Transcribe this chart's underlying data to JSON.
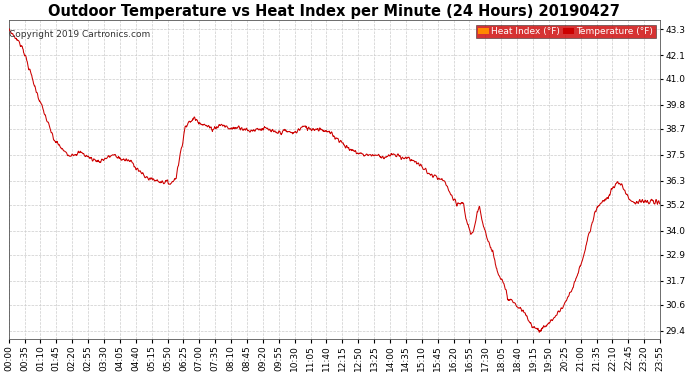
{
  "title": "Outdoor Temperature vs Heat Index per Minute (24 Hours) 20190427",
  "copyright": "Copyright 2019 Cartronics.com",
  "legend_labels": [
    "Heat Index (°F)",
    "Temperature (°F)"
  ],
  "legend_bg_colors": [
    "#ff8800",
    "#cc0000"
  ],
  "line_color": "#cc0000",
  "bg_color": "#ffffff",
  "plot_bg_color": "#ffffff",
  "grid_color": "#cccccc",
  "ylim": [
    29.0,
    43.7
  ],
  "yticks": [
    29.4,
    30.6,
    31.7,
    32.9,
    34.0,
    35.2,
    36.3,
    37.5,
    38.7,
    39.8,
    41.0,
    42.1,
    43.3
  ],
  "title_fontsize": 10.5,
  "copyright_fontsize": 6.5,
  "tick_fontsize": 6.5,
  "x_tick_labels": [
    "00:00",
    "00:35",
    "01:10",
    "01:45",
    "02:20",
    "02:55",
    "03:30",
    "04:05",
    "04:40",
    "05:15",
    "05:50",
    "06:25",
    "07:00",
    "07:35",
    "08:10",
    "08:45",
    "09:20",
    "09:55",
    "10:30",
    "11:05",
    "11:40",
    "12:15",
    "12:50",
    "13:25",
    "14:00",
    "14:35",
    "15:10",
    "15:45",
    "16:20",
    "16:55",
    "17:30",
    "18:05",
    "18:40",
    "19:15",
    "19:50",
    "20:25",
    "21:00",
    "21:35",
    "22:10",
    "22:45",
    "23:20",
    "23:55"
  ],
  "keypoints": [
    [
      0,
      43.3
    ],
    [
      30,
      42.5
    ],
    [
      60,
      40.5
    ],
    [
      100,
      38.2
    ],
    [
      130,
      37.5
    ],
    [
      160,
      37.6
    ],
    [
      185,
      37.3
    ],
    [
      200,
      37.2
    ],
    [
      230,
      37.5
    ],
    [
      250,
      37.3
    ],
    [
      270,
      37.2
    ],
    [
      300,
      36.5
    ],
    [
      330,
      36.3
    ],
    [
      360,
      36.2
    ],
    [
      370,
      36.5
    ],
    [
      390,
      38.8
    ],
    [
      410,
      39.2
    ],
    [
      430,
      38.9
    ],
    [
      450,
      38.7
    ],
    [
      470,
      38.9
    ],
    [
      490,
      38.7
    ],
    [
      510,
      38.8
    ],
    [
      530,
      38.6
    ],
    [
      550,
      38.7
    ],
    [
      570,
      38.7
    ],
    [
      590,
      38.5
    ],
    [
      610,
      38.6
    ],
    [
      630,
      38.5
    ],
    [
      650,
      38.8
    ],
    [
      670,
      38.7
    ],
    [
      690,
      38.7
    ],
    [
      710,
      38.5
    ],
    [
      730,
      38.2
    ],
    [
      750,
      37.8
    ],
    [
      770,
      37.6
    ],
    [
      790,
      37.5
    ],
    [
      810,
      37.5
    ],
    [
      830,
      37.4
    ],
    [
      850,
      37.5
    ],
    [
      870,
      37.4
    ],
    [
      890,
      37.3
    ],
    [
      910,
      37.0
    ],
    [
      930,
      36.6
    ],
    [
      950,
      36.4
    ],
    [
      960,
      36.3
    ],
    [
      970,
      36.0
    ],
    [
      980,
      35.5
    ],
    [
      990,
      35.2
    ],
    [
      1000,
      35.3
    ],
    [
      1005,
      35.2
    ],
    [
      1010,
      34.6
    ],
    [
      1020,
      33.9
    ],
    [
      1025,
      33.9
    ],
    [
      1030,
      34.2
    ],
    [
      1035,
      34.8
    ],
    [
      1040,
      35.2
    ],
    [
      1045,
      34.6
    ],
    [
      1050,
      34.2
    ],
    [
      1055,
      33.8
    ],
    [
      1060,
      33.5
    ],
    [
      1065,
      33.2
    ],
    [
      1070,
      33.0
    ],
    [
      1075,
      32.5
    ],
    [
      1080,
      32.2
    ],
    [
      1085,
      31.9
    ],
    [
      1090,
      31.7
    ],
    [
      1095,
      31.4
    ],
    [
      1100,
      31.1
    ],
    [
      1105,
      30.8
    ],
    [
      1110,
      30.8
    ],
    [
      1115,
      30.7
    ],
    [
      1120,
      30.6
    ],
    [
      1125,
      30.5
    ],
    [
      1130,
      30.4
    ],
    [
      1135,
      30.3
    ],
    [
      1140,
      30.2
    ],
    [
      1145,
      30.0
    ],
    [
      1150,
      29.8
    ],
    [
      1155,
      29.7
    ],
    [
      1160,
      29.6
    ],
    [
      1165,
      29.5
    ],
    [
      1170,
      29.5
    ],
    [
      1175,
      29.4
    ],
    [
      1180,
      29.5
    ],
    [
      1185,
      29.6
    ],
    [
      1190,
      29.7
    ],
    [
      1195,
      29.8
    ],
    [
      1200,
      29.9
    ],
    [
      1205,
      30.0
    ],
    [
      1210,
      30.1
    ],
    [
      1215,
      30.3
    ],
    [
      1220,
      30.4
    ],
    [
      1225,
      30.5
    ],
    [
      1230,
      30.7
    ],
    [
      1235,
      30.9
    ],
    [
      1240,
      31.1
    ],
    [
      1245,
      31.3
    ],
    [
      1250,
      31.6
    ],
    [
      1255,
      31.9
    ],
    [
      1260,
      32.2
    ],
    [
      1265,
      32.5
    ],
    [
      1270,
      32.9
    ],
    [
      1275,
      33.3
    ],
    [
      1280,
      33.7
    ],
    [
      1285,
      34.1
    ],
    [
      1290,
      34.5
    ],
    [
      1295,
      34.8
    ],
    [
      1300,
      35.1
    ],
    [
      1305,
      35.2
    ],
    [
      1310,
      35.3
    ],
    [
      1315,
      35.4
    ],
    [
      1320,
      35.5
    ],
    [
      1325,
      35.6
    ],
    [
      1330,
      35.8
    ],
    [
      1335,
      36.0
    ],
    [
      1340,
      36.1
    ],
    [
      1345,
      36.2
    ],
    [
      1350,
      36.2
    ],
    [
      1355,
      36.1
    ],
    [
      1360,
      35.9
    ],
    [
      1365,
      35.7
    ],
    [
      1370,
      35.5
    ],
    [
      1375,
      35.4
    ],
    [
      1380,
      35.4
    ],
    [
      1385,
      35.3
    ],
    [
      1390,
      35.3
    ],
    [
      1395,
      35.4
    ],
    [
      1400,
      35.4
    ],
    [
      1405,
      35.3
    ],
    [
      1410,
      35.3
    ],
    [
      1415,
      35.3
    ],
    [
      1420,
      35.4
    ],
    [
      1425,
      35.3
    ],
    [
      1430,
      35.3
    ],
    [
      1435,
      35.3
    ],
    [
      1439,
      35.3
    ]
  ]
}
